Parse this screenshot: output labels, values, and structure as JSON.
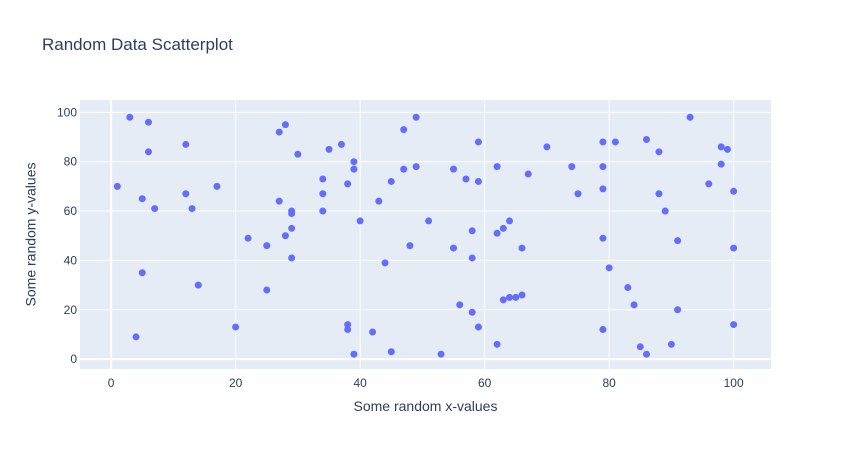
{
  "chart_data": {
    "type": "scatter",
    "title": "Random Data Scatterplot",
    "xlabel": "Some random x-values",
    "ylabel": "Some random y-values",
    "xlim": [
      -5,
      106
    ],
    "ylim": [
      -4,
      105
    ],
    "x_ticks": [
      0,
      20,
      40,
      60,
      80,
      100
    ],
    "y_ticks": [
      0,
      20,
      40,
      60,
      80,
      100
    ],
    "grid": true,
    "legend": "none",
    "colors": {
      "background": "#e5ecf6",
      "marker": "#636efa",
      "text": "#2a3f5f"
    },
    "x": [
      1,
      3,
      4,
      5,
      5,
      6,
      6,
      7,
      12,
      12,
      13,
      14,
      17,
      20,
      22,
      25,
      25,
      27,
      27,
      28,
      28,
      29,
      29,
      29,
      29,
      30,
      34,
      34,
      34,
      35,
      37,
      38,
      38,
      38,
      39,
      39,
      39,
      40,
      42,
      43,
      44,
      45,
      45,
      47,
      47,
      48,
      49,
      49,
      51,
      53,
      55,
      55,
      56,
      57,
      58,
      58,
      58,
      59,
      59,
      59,
      62,
      62,
      62,
      63,
      63,
      64,
      64,
      65,
      66,
      66,
      67,
      70,
      74,
      75,
      79,
      79,
      79,
      79,
      79,
      80,
      81,
      83,
      84,
      85,
      86,
      86,
      88,
      88,
      89,
      90,
      91,
      91,
      93,
      96,
      98,
      98,
      99,
      100,
      100,
      100
    ],
    "y": [
      70,
      98,
      9,
      65,
      35,
      96,
      84,
      61,
      87,
      67,
      61,
      30,
      70,
      13,
      49,
      46,
      28,
      92,
      64,
      95,
      50,
      60,
      59,
      53,
      41,
      83,
      73,
      67,
      60,
      85,
      87,
      71,
      14,
      12,
      80,
      77,
      2,
      56,
      11,
      64,
      39,
      72,
      3,
      93,
      77,
      46,
      98,
      78,
      56,
      2,
      77,
      45,
      22,
      73,
      52,
      41,
      19,
      88,
      72,
      13,
      78,
      51,
      6,
      53,
      24,
      56,
      25,
      25,
      45,
      26,
      75,
      86,
      78,
      67,
      78,
      69,
      49,
      12,
      88,
      37,
      88,
      29,
      22,
      5,
      89,
      2,
      84,
      67,
      60,
      6,
      48,
      20,
      98,
      71,
      86,
      79,
      85,
      68,
      45,
      14
    ]
  }
}
